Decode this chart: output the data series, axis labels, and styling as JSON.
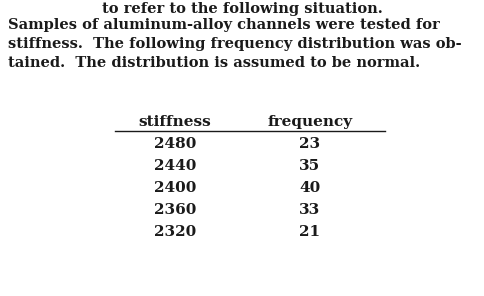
{
  "top_partial_text": "to refer to the following situation.",
  "col1_header": "stiffness",
  "col2_header": "frequency",
  "rows": [
    [
      "2480",
      "23"
    ],
    [
      "2440",
      "35"
    ],
    [
      "2400",
      "40"
    ],
    [
      "2360",
      "33"
    ],
    [
      "2320",
      "21"
    ]
  ],
  "bg_color": "#ffffff",
  "text_color": "#1a1a1a",
  "font_size_body": 10.5,
  "font_size_table": 11.0
}
